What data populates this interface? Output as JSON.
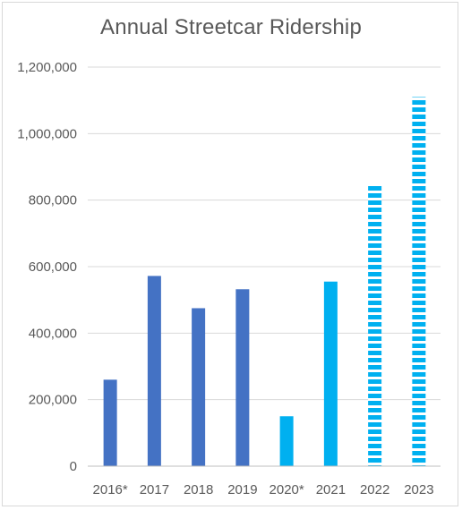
{
  "chart_data": {
    "type": "bar",
    "title": "Annual Streetcar Ridership",
    "categories": [
      "2016*",
      "2017",
      "2018",
      "2019",
      "2020*",
      "2021",
      "2022",
      "2023"
    ],
    "values": [
      260000,
      572000,
      475000,
      532000,
      150000,
      555000,
      850000,
      1110000
    ],
    "bar_colors": [
      "#4472c4",
      "#4472c4",
      "#4472c4",
      "#4472c4",
      "#00b0f0",
      "#00b0f0",
      "#00b0f0",
      "#00b0f0"
    ],
    "bar_patterns": [
      "solid",
      "solid",
      "solid",
      "solid",
      "solid",
      "solid",
      "dashed-horizontal",
      "dashed-horizontal"
    ],
    "y_ticks": [
      "0",
      "200,000",
      "400,000",
      "600,000",
      "800,000",
      "1,000,000",
      "1,200,000"
    ],
    "ylim": [
      0,
      1200000
    ],
    "xlabel": "",
    "ylabel": "",
    "grid": true,
    "legend": "none",
    "colors": {
      "gridline": "#d9d9d9",
      "axis": "#bfbfbf",
      "text": "#595959"
    }
  }
}
